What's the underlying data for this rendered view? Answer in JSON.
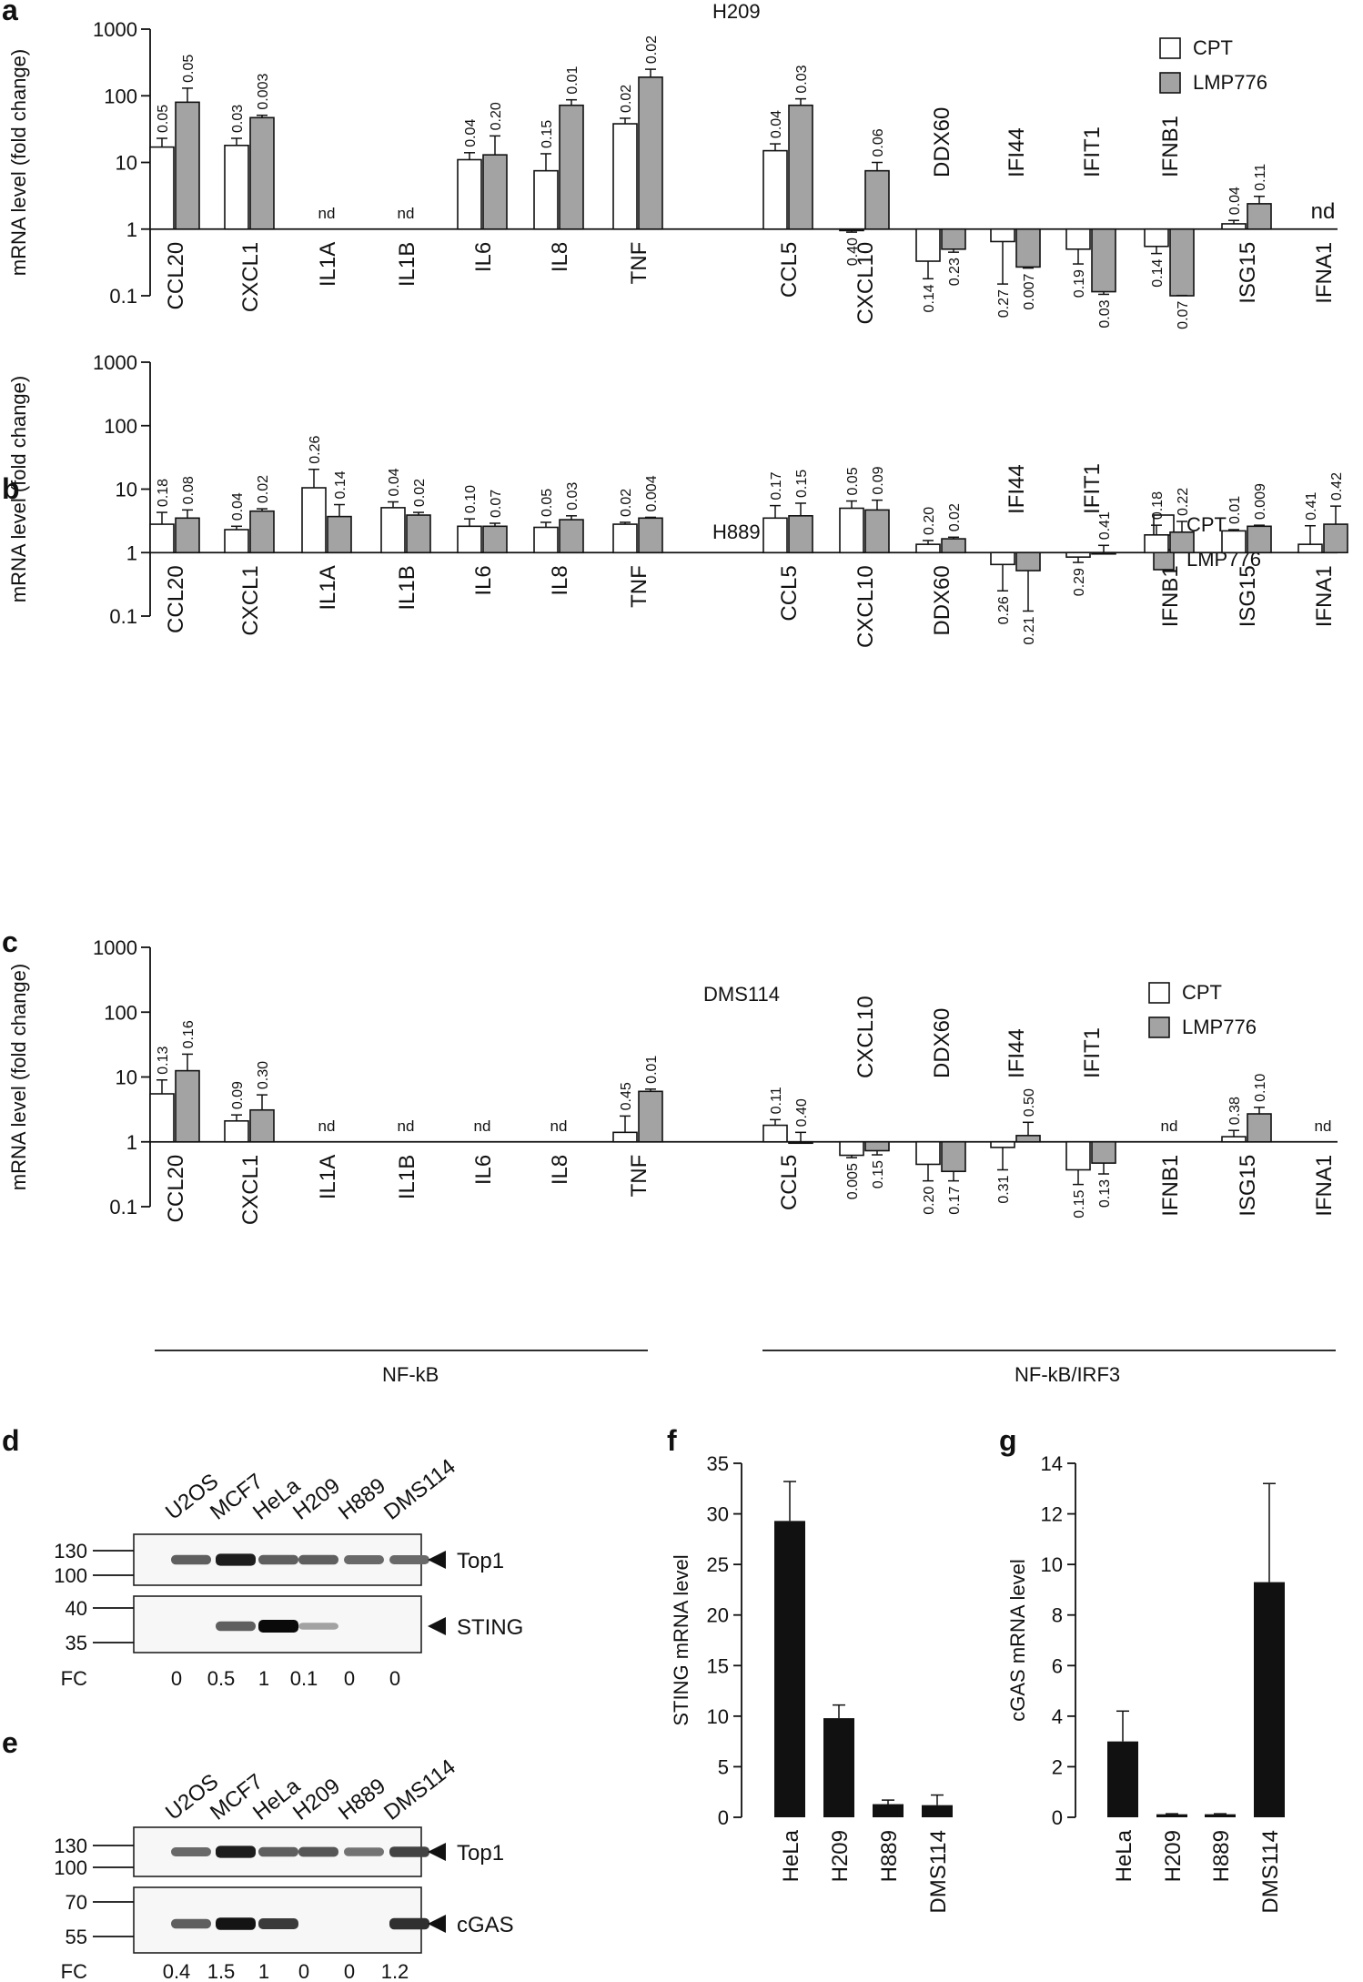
{
  "figure": {
    "shared_ylabel": "mRNA level (fold change)",
    "legend": [
      "CPT",
      "LMP776"
    ],
    "group_labels": [
      "NF-kB",
      "NF-kB/IRF3"
    ],
    "nd_label": "nd",
    "fc_label": "FC"
  },
  "chart_data": [
    {
      "panel": "a",
      "type": "bar",
      "title": "H209",
      "scale": "log",
      "ylim": [
        0.1,
        1000
      ],
      "yticks": [
        "0.1",
        "1",
        "10",
        "100",
        "1000"
      ],
      "ylabel": "mRNA level (fold change)",
      "series": [
        {
          "name": "CPT",
          "color": "#ffffff",
          "values": [
            17,
            18,
            null,
            null,
            11,
            7.5,
            38,
            15,
            0.95,
            0.33,
            0.65,
            0.5,
            0.55,
            1.2,
            null
          ],
          "errors": [
            6,
            5,
            null,
            null,
            3,
            6,
            8,
            4,
            0.05,
            0.15,
            0.5,
            0.2,
            0.12,
            0.15,
            null
          ],
          "pvalues": [
            "0.05",
            "0.03",
            "",
            "",
            "0.04",
            "0.15",
            "0.02",
            "0.04",
            "0.40",
            "0.14",
            "0.27",
            "0.19",
            "0.14",
            "0.04",
            ""
          ]
        },
        {
          "name": "LMP776",
          "color": "#a3a3a3",
          "values": [
            80,
            47,
            null,
            null,
            13,
            72,
            190,
            72,
            7.5,
            0.5,
            0.27,
            0.115,
            0.1,
            2.4,
            null
          ],
          "errors": [
            50,
            4,
            null,
            null,
            12,
            15,
            60,
            18,
            2.5,
            0.05,
            0.01,
            0.01,
            0.05,
            0.7,
            null
          ],
          "pvalues": [
            "0.05",
            "0.003",
            "",
            "",
            "0.20",
            "0.01",
            "0.02",
            "0.03",
            "0.06",
            "0.23",
            "0.007",
            "0.03",
            "0.07",
            "0.11",
            ""
          ]
        }
      ],
      "categories": [
        "CCL20",
        "CXCL1",
        "IL1A",
        "IL1B",
        "IL6",
        "IL8",
        "TNF",
        "CCL5",
        "CXCL10",
        "DDX60",
        "IFI44",
        "IFIT1",
        "IFNB1",
        "ISG15",
        "IFNA1"
      ],
      "nd": [
        "IL1A",
        "IL1B",
        "IFNA1"
      ],
      "label_above": [
        "DDX60",
        "IFI44",
        "IFIT1",
        "IFNB1"
      ]
    },
    {
      "panel": "b",
      "type": "bar",
      "title": "H889",
      "scale": "log",
      "ylim": [
        0.1,
        1000
      ],
      "yticks": [
        "0.1",
        "1",
        "10",
        "100",
        "1000"
      ],
      "ylabel": "mRNA level (fold change)",
      "series": [
        {
          "name": "CPT",
          "color": "#ffffff",
          "values": [
            2.8,
            2.3,
            10.5,
            5.1,
            2.6,
            2.5,
            2.8,
            3.5,
            5.0,
            1.35,
            0.65,
            0.85,
            1.9,
            2.2,
            1.35
          ],
          "errors": [
            1.5,
            0.3,
            10,
            1.2,
            0.8,
            0.5,
            0.2,
            2.0,
            1.5,
            0.2,
            0.4,
            0.15,
            0.8,
            0.1,
            1.3
          ],
          "pvalues": [
            "0.18",
            "0.04",
            "0.26",
            "0.04",
            "0.10",
            "0.05",
            "0.02",
            "0.17",
            "0.05",
            "0.20",
            "0.26",
            "0.29",
            "0.18",
            "0.01",
            "0.41"
          ]
        },
        {
          "name": "LMP776",
          "color": "#a3a3a3",
          "values": [
            3.5,
            4.5,
            3.7,
            3.9,
            2.6,
            3.3,
            3.5,
            3.8,
            4.7,
            1.65,
            0.52,
            1.0,
            2.1,
            2.6,
            2.8
          ],
          "errors": [
            1.2,
            0.4,
            2,
            0.4,
            0.3,
            0.5,
            0.1,
            2.2,
            2.0,
            0.1,
            0.4,
            0.3,
            1.0,
            0.1,
            2.6
          ],
          "pvalues": [
            "0.08",
            "0.02",
            "0.14",
            "0.02",
            "0.07",
            "0.03",
            "0.004",
            "0.15",
            "0.09",
            "0.02",
            "0.21",
            "0.41",
            "0.22",
            "0.009",
            "0.42"
          ]
        }
      ],
      "categories": [
        "CCL20",
        "CXCL1",
        "IL1A",
        "IL1B",
        "IL6",
        "IL8",
        "TNF",
        "CCL5",
        "CXCL10",
        "DDX60",
        "IFI44",
        "IFIT1",
        "IFNB1",
        "ISG15",
        "IFNA1"
      ],
      "nd": [],
      "label_above": [
        "IFI44",
        "IFIT1"
      ]
    },
    {
      "panel": "c",
      "type": "bar",
      "title": "DMS114",
      "scale": "log",
      "ylim": [
        0.1,
        1000
      ],
      "yticks": [
        "0.1",
        "1",
        "10",
        "100",
        "1000"
      ],
      "ylabel": "mRNA level (fold change)",
      "series": [
        {
          "name": "CPT",
          "color": "#ffffff",
          "values": [
            5.5,
            2.1,
            null,
            null,
            null,
            null,
            1.4,
            1.8,
            0.62,
            0.45,
            0.82,
            0.37,
            null,
            1.2,
            null
          ],
          "errors": [
            3.5,
            0.5,
            null,
            null,
            null,
            null,
            1.1,
            0.4,
            0.05,
            0.2,
            0.45,
            0.15,
            null,
            0.3,
            null
          ],
          "pvalues": [
            "0.13",
            "0.09",
            "",
            "",
            "",
            "",
            "0.45",
            "0.11",
            "0.005",
            "0.20",
            "0.31",
            "0.15",
            "",
            "0.38",
            ""
          ]
        },
        {
          "name": "LMP776",
          "color": "#a3a3a3",
          "values": [
            12.5,
            3.1,
            null,
            null,
            null,
            null,
            6.0,
            1.0,
            0.73,
            0.35,
            1.25,
            0.47,
            null,
            2.7,
            null
          ],
          "errors": [
            10,
            2.2,
            null,
            null,
            null,
            null,
            0.5,
            0.4,
            0.1,
            0.1,
            0.75,
            0.15,
            null,
            0.7,
            null
          ],
          "pvalues": [
            "0.16",
            "0.30",
            "",
            "",
            "",
            "",
            "0.01",
            "0.40",
            "0.15",
            "0.17",
            "0.50",
            "0.13",
            "",
            "0.10",
            ""
          ]
        }
      ],
      "categories": [
        "CCL20",
        "CXCL1",
        "IL1A",
        "IL1B",
        "IL6",
        "IL8",
        "TNF",
        "CCL5",
        "CXCL10",
        "DDX60",
        "IFI44",
        "IFIT1",
        "IFNB1",
        "ISG15",
        "IFNA1"
      ],
      "nd": [
        "IL1A",
        "IL1B",
        "IL6",
        "IL8",
        "IFNB1",
        "IFNA1"
      ],
      "label_above": [
        "CXCL10",
        "DDX60",
        "IFI44",
        "IFIT1"
      ]
    },
    {
      "panel": "f",
      "type": "bar",
      "title": "",
      "scale": "linear",
      "ylabel": "STING mRNA level",
      "ylim": [
        0,
        35
      ],
      "yticks": [
        "0",
        "5",
        "10",
        "15",
        "20",
        "25",
        "30",
        "35"
      ],
      "categories": [
        "HeLa",
        "H209",
        "H889",
        "DMS114"
      ],
      "values": [
        29.3,
        9.8,
        1.3,
        1.2
      ],
      "errors": [
        3.9,
        1.3,
        0.4,
        1.0
      ]
    },
    {
      "panel": "g",
      "type": "bar",
      "title": "",
      "scale": "linear",
      "ylabel": "cGAS mRNA level",
      "ylim": [
        0,
        14
      ],
      "yticks": [
        "0",
        "2",
        "4",
        "6",
        "8",
        "10",
        "12",
        "14"
      ],
      "categories": [
        "HeLa",
        "H209",
        "H889",
        "DMS114"
      ],
      "values": [
        3.0,
        0.12,
        0.12,
        9.3
      ],
      "errors": [
        1.2,
        0.02,
        0.02,
        3.9
      ]
    }
  ],
  "blots": [
    {
      "panel": "d",
      "lanes": [
        "U2OS",
        "MCF7",
        "HeLa",
        "H209",
        "H889",
        "DMS114"
      ],
      "rows": [
        {
          "label": "Top1",
          "mw": [
            "130",
            "100"
          ],
          "intensity": [
            0.55,
            0.9,
            0.55,
            0.55,
            0.5,
            0.5
          ]
        },
        {
          "label": "STING",
          "mw": [
            "40",
            "35"
          ],
          "intensity": [
            0.0,
            0.55,
            1.0,
            0.2,
            0.0,
            0.0
          ]
        }
      ],
      "fc": [
        "0",
        "0.5",
        "1",
        "0.1",
        "0",
        "0"
      ]
    },
    {
      "panel": "e",
      "lanes": [
        "U2OS",
        "MCF7",
        "HeLa",
        "H209",
        "H889",
        "DMS114"
      ],
      "rows": [
        {
          "label": "Top1",
          "mw": [
            "130",
            "100"
          ],
          "intensity": [
            0.5,
            0.9,
            0.55,
            0.6,
            0.45,
            0.7
          ]
        },
        {
          "label": "cGAS",
          "mw": [
            "70",
            "55"
          ],
          "intensity": [
            0.55,
            0.95,
            0.75,
            0.0,
            0.0,
            0.8
          ]
        }
      ],
      "fc": [
        "0.4",
        "1.5",
        "1",
        "0",
        "0",
        "1.2"
      ]
    }
  ]
}
